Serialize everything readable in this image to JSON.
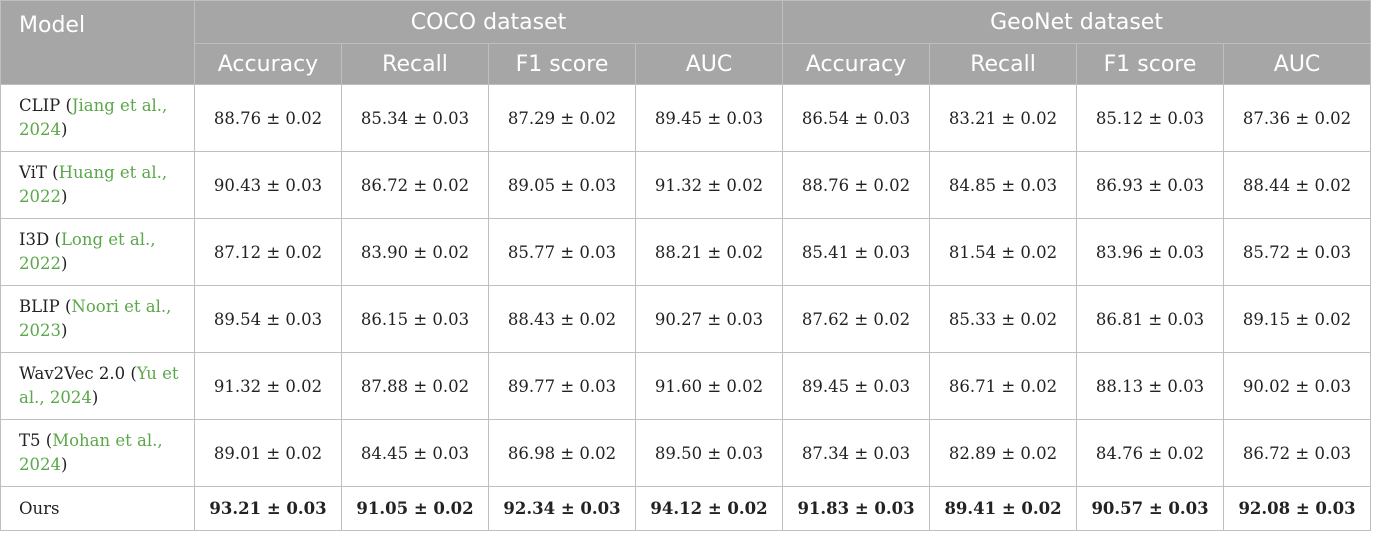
{
  "header": {
    "model_label": "Model",
    "groups": [
      "COCO dataset",
      "GeoNet dataset"
    ],
    "metrics": [
      "Accuracy",
      "Recall",
      "F1 score",
      "AUC",
      "Accuracy",
      "Recall",
      "F1 score",
      "AUC"
    ]
  },
  "rows": [
    {
      "name": "CLIP",
      "cite": "Jiang et al., 2024",
      "values": [
        "88.76 ± 0.02",
        "85.34 ± 0.03",
        "87.29 ± 0.02",
        "89.45 ± 0.03",
        "86.54 ± 0.03",
        "83.21 ± 0.02",
        "85.12 ± 0.03",
        "87.36 ± 0.02"
      ]
    },
    {
      "name": "ViT",
      "cite": "Huang et al., 2022",
      "values": [
        "90.43 ± 0.03",
        "86.72 ± 0.02",
        "89.05 ± 0.03",
        "91.32 ± 0.02",
        "88.76 ± 0.02",
        "84.85 ± 0.03",
        "86.93 ± 0.03",
        "88.44 ± 0.02"
      ]
    },
    {
      "name": "I3D",
      "cite": "Long et al., 2022",
      "values": [
        "87.12 ± 0.02",
        "83.90 ± 0.02",
        "85.77 ± 0.03",
        "88.21 ± 0.02",
        "85.41 ± 0.03",
        "81.54 ± 0.02",
        "83.96 ± 0.03",
        "85.72 ± 0.03"
      ]
    },
    {
      "name": "BLIP",
      "cite": "Noori et al., 2023",
      "values": [
        "89.54 ± 0.03",
        "86.15 ± 0.03",
        "88.43 ± 0.02",
        "90.27 ± 0.03",
        "87.62 ± 0.02",
        "85.33 ± 0.02",
        "86.81 ± 0.03",
        "89.15 ± 0.02"
      ]
    },
    {
      "name": "Wav2Vec 2.0",
      "cite": "Yu et al., 2024",
      "values": [
        "91.32 ± 0.02",
        "87.88 ± 0.02",
        "89.77 ± 0.03",
        "91.60 ± 0.02",
        "89.45 ± 0.03",
        "86.71 ± 0.02",
        "88.13 ± 0.03",
        "90.02 ± 0.03"
      ]
    },
    {
      "name": "T5",
      "cite": "Mohan et al., 2024",
      "values": [
        "89.01 ± 0.02",
        "84.45 ± 0.03",
        "86.98 ± 0.02",
        "89.50 ± 0.03",
        "87.34 ± 0.03",
        "82.89 ± 0.02",
        "84.76 ± 0.02",
        "86.72 ± 0.03"
      ]
    },
    {
      "name": "Ours",
      "cite": "",
      "values": [
        "93.21 ± 0.03",
        "91.05 ± 0.02",
        "92.34 ± 0.03",
        "94.12 ± 0.02",
        "91.83 ± 0.03",
        "89.41 ± 0.02",
        "90.57 ± 0.03",
        "92.08 ± 0.03"
      ]
    }
  ]
}
